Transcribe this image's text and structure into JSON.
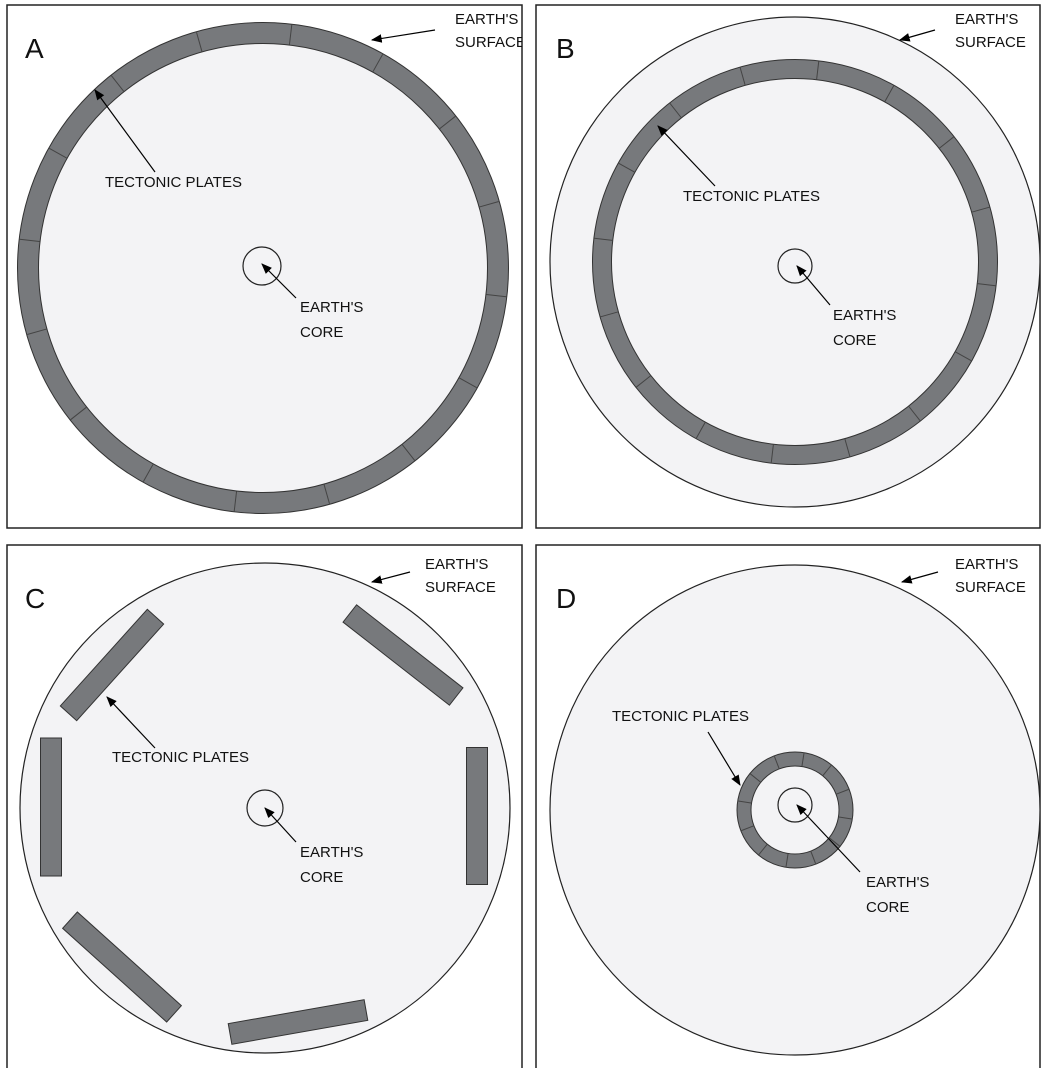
{
  "panels": [
    {
      "label": "A",
      "surface": [
        "EARTH'S",
        "SURFACE"
      ],
      "plates": "TECTONIC PLATES",
      "core": [
        "EARTH'S",
        "CORE"
      ]
    },
    {
      "label": "B",
      "surface": [
        "EARTH'S",
        "SURFACE"
      ],
      "plates": "TECTONIC PLATES",
      "core": [
        "EARTH'S",
        "CORE"
      ]
    },
    {
      "label": "C",
      "surface": [
        "EARTH'S",
        "SURFACE"
      ],
      "plates": "TECTONIC PLATES",
      "core": [
        "EARTH'S",
        "CORE"
      ]
    },
    {
      "label": "D",
      "surface": [
        "EARTH'S",
        "SURFACE"
      ],
      "plates": "TECTONIC PLATES",
      "core": [
        "EARTH'S",
        "CORE"
      ]
    }
  ]
}
